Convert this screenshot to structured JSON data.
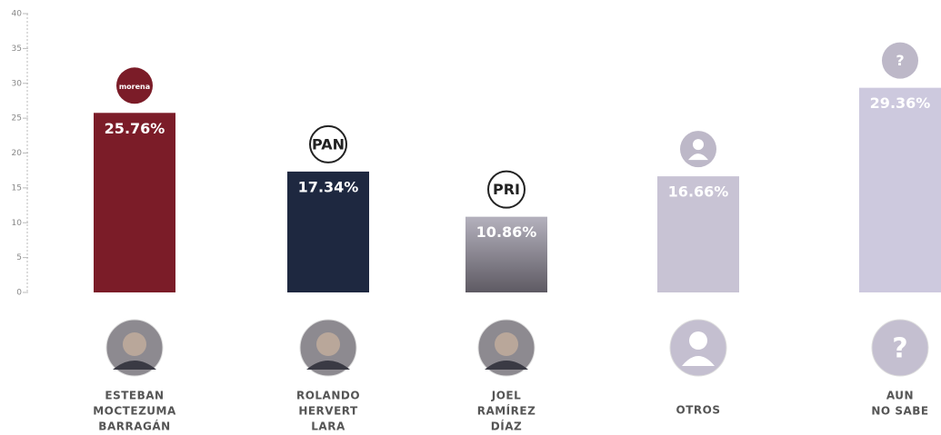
{
  "chart_data": {
    "type": "bar",
    "categories": [
      [
        "ESTEBAN",
        "MOCTEZUMA",
        "BARRAGÁN"
      ],
      [
        "ROLANDO",
        "HERVERT",
        "LARA"
      ],
      [
        "JOEL",
        "RAMÍREZ",
        "DÍAZ"
      ],
      [
        "OTROS"
      ],
      [
        "AUN",
        "NO SABE"
      ]
    ],
    "values": [
      25.76,
      17.34,
      10.86,
      16.66,
      29.36
    ],
    "value_labels": [
      "25.76%",
      "17.34%",
      "10.86%",
      "16.66%",
      "29.36%"
    ],
    "colors": [
      "#7b1c28",
      "#1e2840",
      "#8a8790",
      "#c8c3d4",
      "#cdc9de"
    ],
    "bar_logos": [
      "morena",
      "PAN",
      "PRI",
      null,
      "?"
    ],
    "bottom_icons": [
      null,
      null,
      null,
      null,
      "?"
    ],
    "ylim": [
      0,
      40
    ],
    "yticks": [
      0,
      5,
      10,
      15,
      20,
      25,
      30,
      35,
      40
    ],
    "grid": false
  }
}
